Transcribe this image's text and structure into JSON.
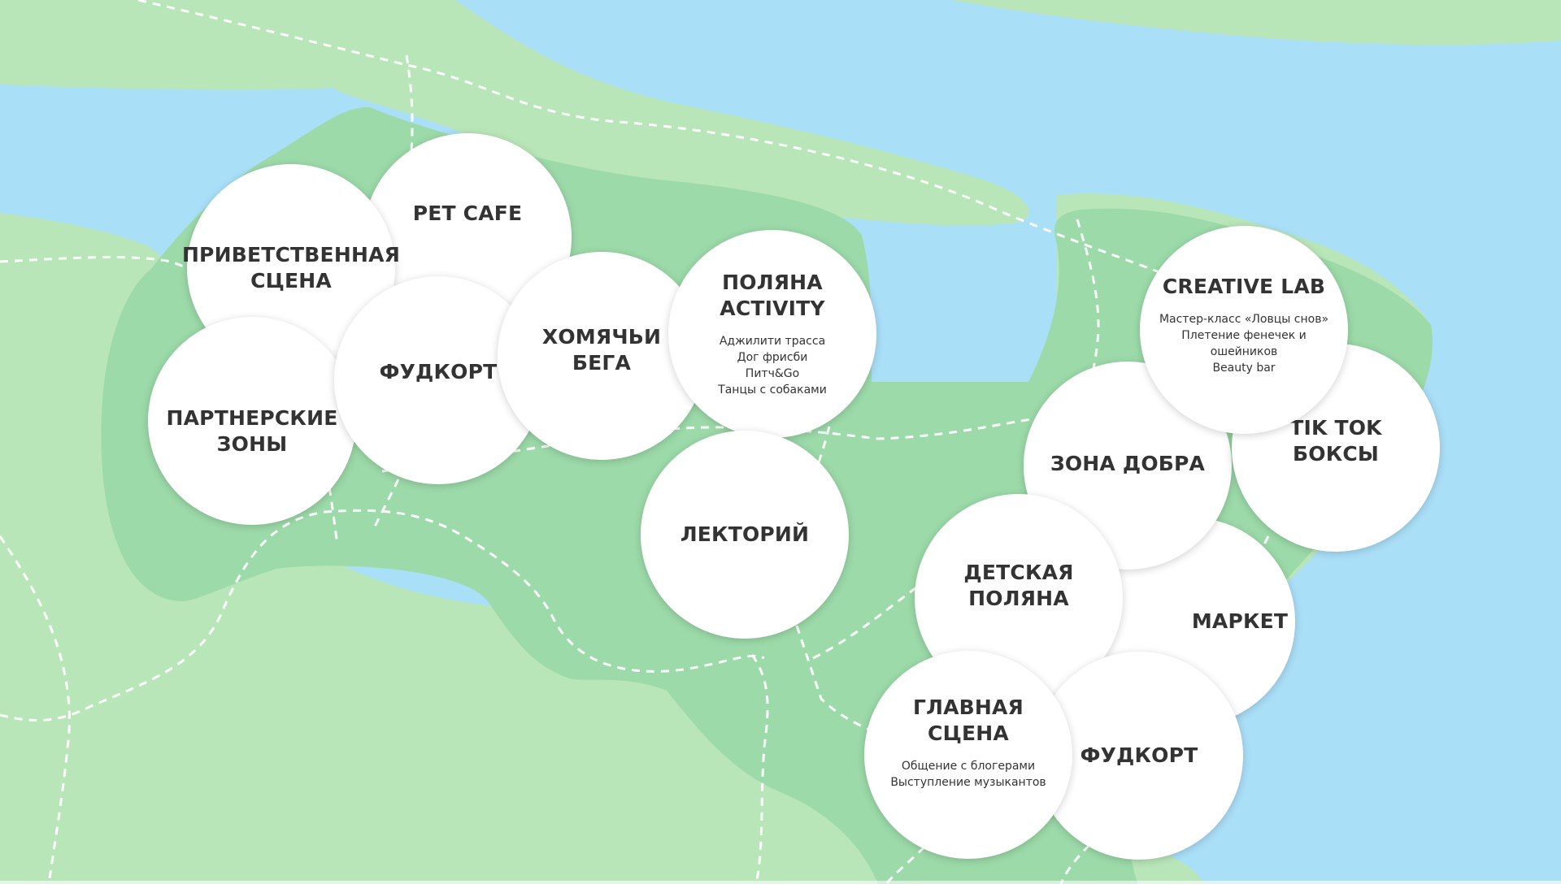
{
  "map": {
    "colors": {
      "water": "#aadff8",
      "land": "#b9e6b9",
      "park": "#9cdaa9",
      "path": "#ffffff",
      "zone_fill": "#ffffff",
      "zone_text": "#333333"
    },
    "zones": [
      {
        "id": "pet-cafe",
        "title": "PET CAFE"
      },
      {
        "id": "welcome-stage",
        "title": "ПРИВЕТСТВЕННАЯ\nСЦЕНА"
      },
      {
        "id": "partner-zones",
        "title": "ПАРТНЕРСКИЕ\nЗОНЫ"
      },
      {
        "id": "foodcourt-west",
        "title": "ФУДКОРТ"
      },
      {
        "id": "hamster-runs",
        "title": "ХОМЯЧЬИ\nБЕГА"
      },
      {
        "id": "activity-meadow",
        "title": "ПОЛЯНА\nACTIVITY",
        "description": "Аджилити трасса\nДог фрисби\nПитч&Go\nТанцы с собаками"
      },
      {
        "id": "lecture-hall",
        "title": "ЛЕКТОРИЙ"
      },
      {
        "id": "market",
        "title": "МАРКЕТ"
      },
      {
        "id": "kindness-zone",
        "title": "ЗОНА ДОБРА"
      },
      {
        "id": "tiktok-boxes",
        "title": "TIK TOK\nБОКСЫ"
      },
      {
        "id": "creative-lab",
        "title": "CREATIVE LAB",
        "description": "Мастер-класс «Ловцы снов»\nПлетение фенечек и ошейников\nBeauty bar"
      },
      {
        "id": "kids-meadow",
        "title": "ДЕТСКАЯ\nПОЛЯНА"
      },
      {
        "id": "foodcourt-east",
        "title": "ФУДКОРТ"
      },
      {
        "id": "main-stage",
        "title": "ГЛАВНАЯ\nСЦЕНА",
        "description": "Общение с блогерами\nВыступление музыкантов"
      }
    ]
  }
}
